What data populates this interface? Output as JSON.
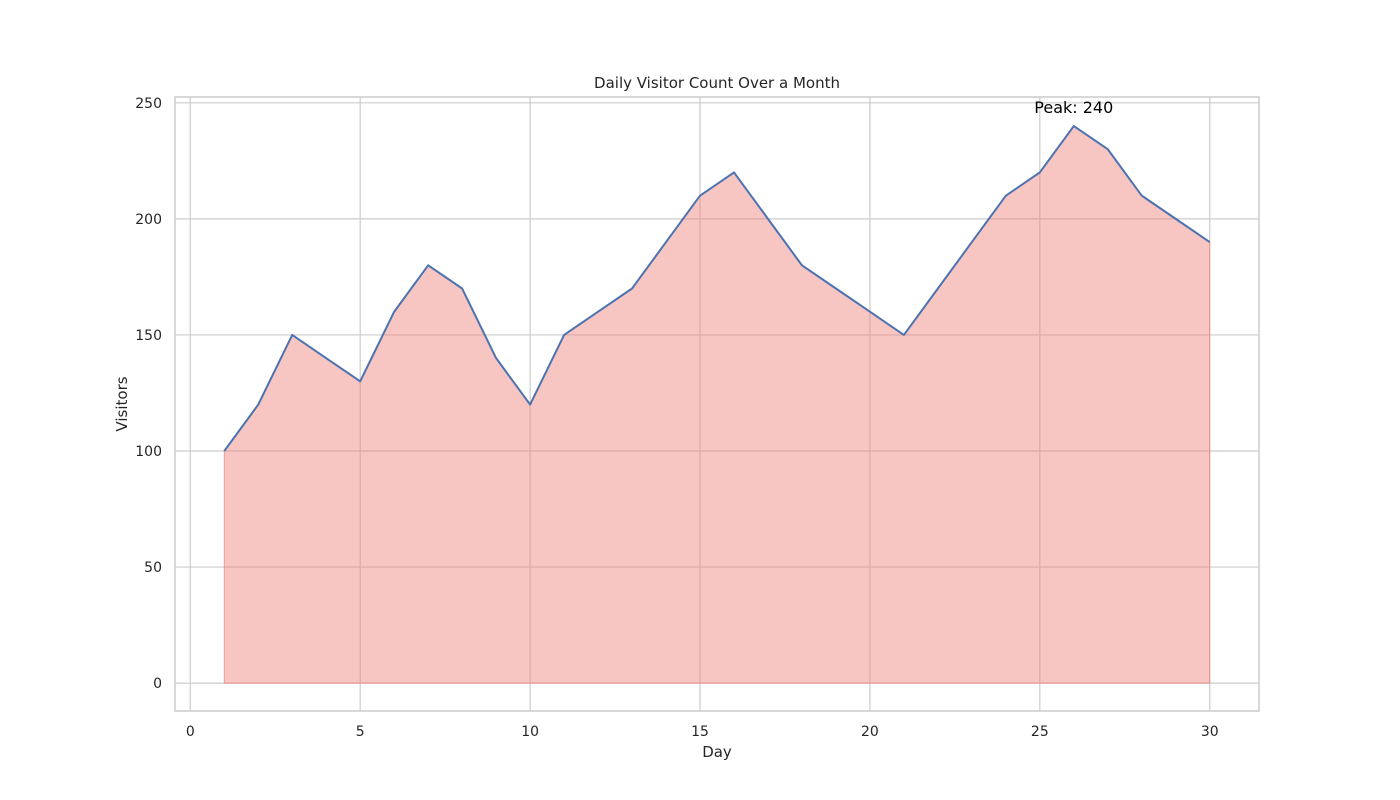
{
  "chart_data": {
    "type": "area",
    "title": "Daily Visitor Count Over a Month",
    "xlabel": "Day",
    "ylabel": "Visitors",
    "xlim": [
      -0.45,
      31.45
    ],
    "ylim": [
      -12,
      252.5
    ],
    "xticks": [
      0,
      5,
      10,
      15,
      20,
      25,
      30
    ],
    "yticks": [
      0,
      50,
      100,
      150,
      200,
      250
    ],
    "grid": true,
    "x": [
      1,
      2,
      3,
      4,
      5,
      6,
      7,
      8,
      9,
      10,
      11,
      12,
      13,
      14,
      15,
      16,
      17,
      18,
      19,
      20,
      21,
      22,
      23,
      24,
      25,
      26,
      27,
      28,
      29,
      30
    ],
    "series": [
      {
        "values": [
          100,
          120,
          150,
          140,
          130,
          160,
          180,
          170,
          140,
          120,
          150,
          160,
          170,
          190,
          210,
          220,
          200,
          180,
          170,
          160,
          150,
          170,
          190,
          210,
          220,
          240,
          230,
          210,
          200,
          190
        ]
      }
    ],
    "annotations": [
      {
        "text": "Peak: 240",
        "x": 26,
        "y": 240
      }
    ],
    "colors": {
      "line": "#4c72b0",
      "fill": "#ee8079",
      "fill_opacity": 0.45,
      "grid": "#cccccc",
      "spine": "#cccccc"
    }
  }
}
